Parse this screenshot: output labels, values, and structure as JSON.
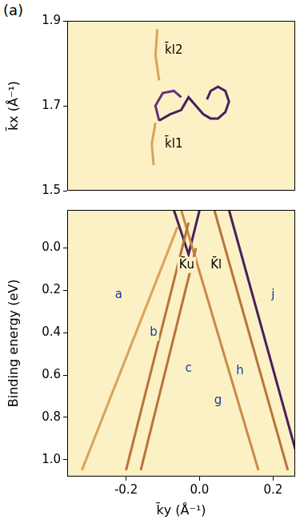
{
  "chart_data": [
    {
      "type": "line",
      "panel": "(a)",
      "ylabel": "k̄x (Å⁻¹)",
      "xlim": [
        -0.36,
        0.26
      ],
      "ylim": [
        1.5,
        1.9
      ],
      "yticks": [
        1.5,
        1.7,
        1.9
      ],
      "grid": false,
      "tick_labels": "y",
      "series": [
        {
          "color": "#4a1f5c",
          "x": [
            -0.11,
            -0.08,
            -0.05,
            -0.03,
            -0.01,
            0.01,
            0.03,
            0.05,
            0.07,
            0.08,
            0.07,
            0.05,
            0.03,
            0.02
          ],
          "values": [
            1.665,
            1.68,
            1.69,
            1.72,
            1.7,
            1.68,
            1.67,
            1.67,
            1.685,
            1.71,
            1.735,
            1.745,
            1.735,
            1.715
          ]
        },
        {
          "color": "#6a2f7a",
          "x": [
            -0.11,
            -0.12,
            -0.1,
            -0.07,
            -0.05
          ],
          "values": [
            1.665,
            1.7,
            1.73,
            1.735,
            1.72
          ]
        },
        {
          "color": "#d9a35a",
          "x": [
            -0.11,
            -0.12,
            -0.115
          ],
          "values": [
            1.76,
            1.82,
            1.88
          ]
        },
        {
          "color": "#d9a35a",
          "x": [
            -0.12,
            -0.13,
            -0.125
          ],
          "values": [
            1.66,
            1.61,
            1.56
          ]
        }
      ],
      "annotations": [
        {
          "text": "k̄l2",
          "x": -0.07,
          "y": 1.83,
          "color": "#000000"
        },
        {
          "text": "k̄l1",
          "x": -0.07,
          "y": 1.61,
          "color": "#000000"
        }
      ]
    },
    {
      "type": "line",
      "xlabel": "k̄y (Å⁻¹)",
      "ylabel": "Binding energy (eV)",
      "xlim": [
        -0.36,
        0.26
      ],
      "ylim": [
        1.08,
        -0.18
      ],
      "xticks": [
        -0.2,
        {
          "value": 0,
          "label": "0.0"
        },
        0.2
      ],
      "yticks": [
        {
          "value": 0,
          "label": "0.0"
        },
        0.2,
        0.4,
        0.6,
        0.8,
        {
          "value": 1,
          "label": "1.0"
        }
      ],
      "grid": false,
      "series": [
        {
          "color": "#d9a35a",
          "x": [
            -0.06,
            -0.32
          ],
          "values": [
            -0.1,
            1.05
          ]
        },
        {
          "color": "#b8743a",
          "x": [
            -0.03,
            -0.2
          ],
          "values": [
            -0.12,
            1.05
          ]
        },
        {
          "color": "#b8743a",
          "x": [
            -0.01,
            -0.16
          ],
          "values": [
            0.0,
            1.05
          ]
        },
        {
          "color": "#c98a4a",
          "x": [
            -0.05,
            0.16
          ],
          "values": [
            -0.18,
            1.05
          ]
        },
        {
          "color": "#b8743a",
          "x": [
            0.04,
            0.24
          ],
          "values": [
            -0.18,
            1.05
          ]
        },
        {
          "color": "#4a1f5c",
          "x": [
            0.08,
            0.26
          ],
          "values": [
            -0.18,
            0.95
          ]
        },
        {
          "color": "#4a1f5c",
          "x": [
            -0.07,
            -0.03,
            0.0
          ],
          "values": [
            -0.18,
            0.03,
            -0.18
          ]
        }
      ],
      "annotations": [
        {
          "text": "a",
          "x": -0.22,
          "y": 0.22,
          "color": "#1a3aa8"
        },
        {
          "text": "b",
          "x": -0.125,
          "y": 0.4,
          "color": "#1a3aa8"
        },
        {
          "text": "c",
          "x": -0.03,
          "y": 0.57,
          "color": "#1a3aa8"
        },
        {
          "text": "h",
          "x": 0.11,
          "y": 0.58,
          "color": "#1a3aa8"
        },
        {
          "text": "g",
          "x": 0.05,
          "y": 0.72,
          "color": "#1a3aa8"
        },
        {
          "text": "j",
          "x": 0.2,
          "y": 0.22,
          "color": "#1a3aa8"
        },
        {
          "text": "K̄u",
          "x": -0.035,
          "y": 0.08,
          "color": "#000000"
        },
        {
          "text": "K̄l",
          "x": 0.045,
          "y": 0.08,
          "color": "#000000"
        }
      ]
    }
  ]
}
